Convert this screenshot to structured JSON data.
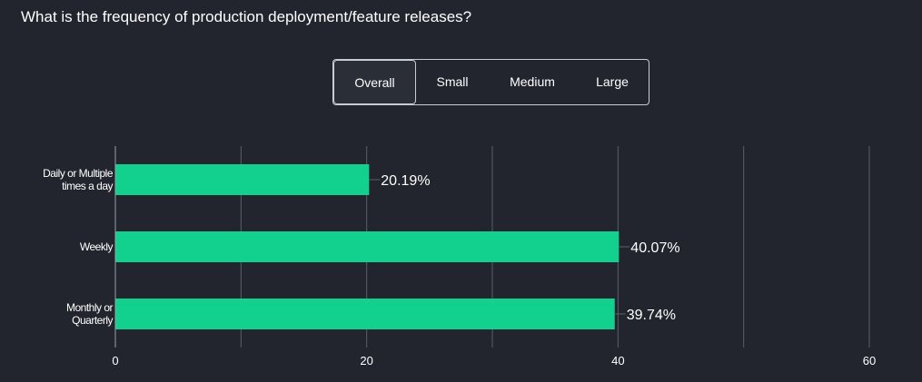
{
  "question": "What is the frequency of production deployment/feature releases?",
  "tabs": [
    {
      "label": "Overall",
      "active": true
    },
    {
      "label": "Small",
      "active": false
    },
    {
      "label": "Medium",
      "active": false
    },
    {
      "label": "Large",
      "active": false
    }
  ],
  "colors": {
    "background": "#22252d",
    "bar": "#12d18e",
    "grid": "#5a5f6b",
    "text": "#ffffff"
  },
  "chart_data": {
    "type": "bar",
    "orientation": "horizontal",
    "categories": [
      [
        "Daily or Multiple",
        "times a day"
      ],
      [
        "Weekly"
      ],
      [
        "Monthly or",
        "Quarterly"
      ]
    ],
    "values": [
      20.19,
      40.07,
      39.74
    ],
    "value_labels": [
      "20.19%",
      "40.07%",
      "39.74%"
    ],
    "xlim": [
      0,
      60
    ],
    "xticks": [
      0,
      20,
      40,
      60
    ],
    "grid": true,
    "title": "",
    "xlabel": "",
    "ylabel": ""
  }
}
